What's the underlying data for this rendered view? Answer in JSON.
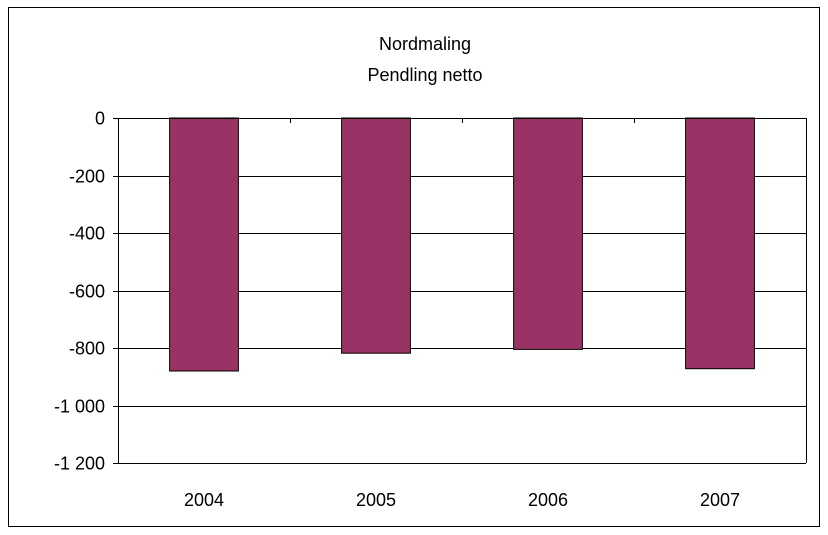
{
  "chart_data": {
    "type": "bar",
    "title": "Nordmaling",
    "subtitle": "Pendling netto",
    "xlabel": "",
    "ylabel": "",
    "categories": [
      "2004",
      "2005",
      "2006",
      "2007"
    ],
    "series": [
      {
        "values": [
          -880,
          -818,
          -805,
          -872
        ]
      }
    ],
    "ylim": [
      -1200,
      0
    ],
    "yticks": [
      0,
      -200,
      -400,
      -600,
      -800,
      -1000,
      -1200
    ],
    "ytick_labels": [
      "0",
      "-200",
      "-400",
      "-600",
      "-800",
      "-1 000",
      "-1 200"
    ],
    "grid": true,
    "legend": "none",
    "colors": {
      "bar": "#993366",
      "grid": "#000000",
      "background": "#ffffff"
    }
  }
}
